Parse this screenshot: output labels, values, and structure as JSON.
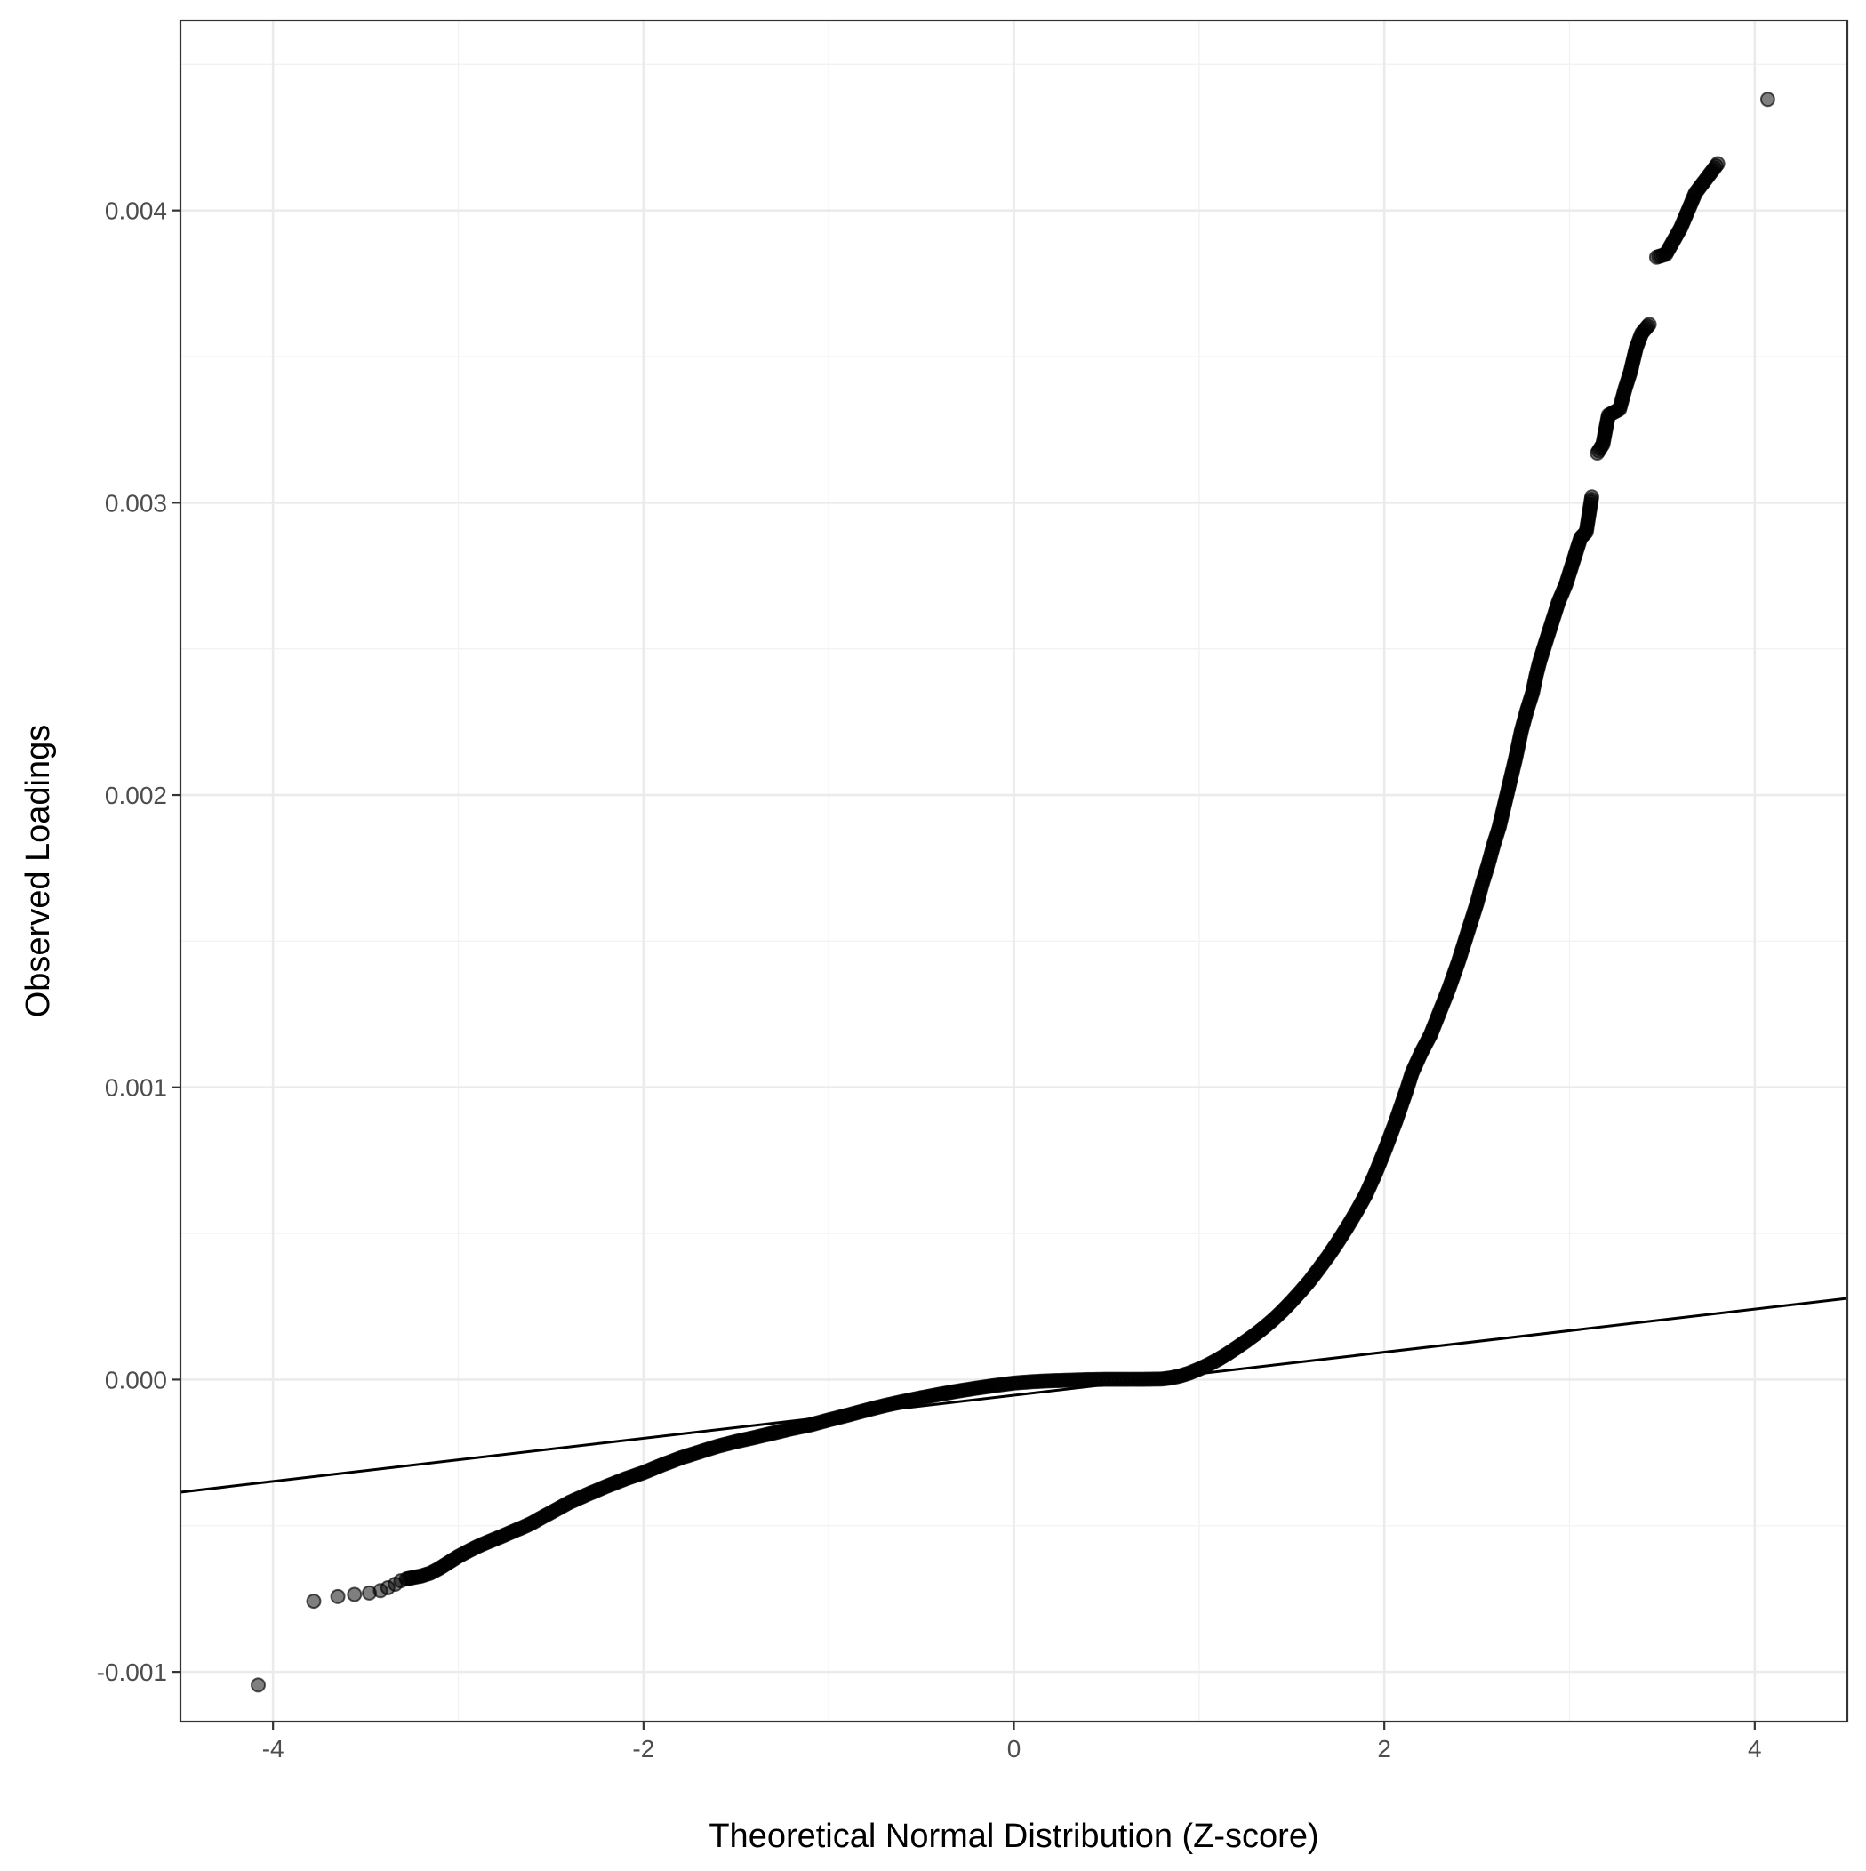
{
  "chart_data": {
    "type": "scatter",
    "title": "",
    "xlabel": "Theoretical Normal Distribution (Z-score)",
    "ylabel": "Observed Loadings",
    "xlim": [
      -4.5,
      4.5
    ],
    "ylim": [
      -0.00117,
      0.00465
    ],
    "x_ticks": [
      -4,
      -2,
      0,
      2,
      4
    ],
    "x_tick_labels": [
      "-4",
      "-2",
      "0",
      "2",
      "4"
    ],
    "y_ticks": [
      -0.001,
      0.0,
      0.001,
      0.002,
      0.003,
      0.004
    ],
    "y_tick_labels": [
      "-0.001",
      "0.000",
      "0.001",
      "0.002",
      "0.003",
      "0.004"
    ],
    "grid": true,
    "legend": "none",
    "reference_line": {
      "x": [
        -4.5,
        4.5
      ],
      "y": [
        -0.000385,
        0.000278
      ]
    },
    "point_color": "#000000",
    "series": [
      {
        "x": [
          -4.08,
          -3.78,
          -3.65,
          -3.56,
          -3.48,
          -3.42,
          -3.38,
          -3.34,
          -3.31,
          -3.28,
          -3.25,
          -3.2,
          -3.15,
          -3.1,
          -3.05,
          -3.0,
          -2.95,
          -2.9,
          -2.85,
          -2.8,
          -2.75,
          -2.7,
          -2.65,
          -2.6,
          -2.55,
          -2.5,
          -2.4,
          -2.3,
          -2.2,
          -2.1,
          -2.0,
          -1.9,
          -1.8,
          -1.7,
          -1.6,
          -1.5,
          -1.4,
          -1.3,
          -1.2,
          -1.1,
          -1.0,
          -0.9,
          -0.8,
          -0.7,
          -0.6,
          -0.5,
          -0.4,
          -0.3,
          -0.2,
          -0.1,
          0.0,
          0.1,
          0.2,
          0.3,
          0.4,
          0.5,
          0.6,
          0.7,
          0.8,
          0.85,
          0.9,
          0.95,
          1.0,
          1.05,
          1.1,
          1.15,
          1.2,
          1.25,
          1.3,
          1.35,
          1.4,
          1.45,
          1.5,
          1.55,
          1.6,
          1.65,
          1.7,
          1.75,
          1.8,
          1.85,
          1.9,
          1.95,
          2.0,
          2.03,
          2.06,
          2.09,
          2.12,
          2.15,
          2.2,
          2.25,
          2.3,
          2.35,
          2.4,
          2.45,
          2.5,
          2.53,
          2.56,
          2.59,
          2.62,
          2.65,
          2.68,
          2.71,
          2.74,
          2.77,
          2.8,
          2.82,
          2.84,
          2.86,
          2.88,
          2.9,
          2.92,
          2.94,
          2.96,
          2.98,
          3.0,
          3.02,
          3.04,
          3.06,
          3.09,
          3.12,
          3.15,
          3.18,
          3.21,
          3.24,
          3.27,
          3.3,
          3.33,
          3.36,
          3.39,
          3.43,
          3.47,
          3.52,
          3.6,
          3.68,
          3.8,
          4.07
        ],
        "y": [
          -0.001045,
          -0.000758,
          -0.000742,
          -0.000735,
          -0.00073,
          -0.000722,
          -0.000712,
          -0.0007,
          -0.000688,
          -0.000682,
          -0.000678,
          -0.000672,
          -0.000662,
          -0.000645,
          -0.000625,
          -0.000605,
          -0.000588,
          -0.000572,
          -0.000558,
          -0.000545,
          -0.000532,
          -0.000518,
          -0.000505,
          -0.00049,
          -0.000472,
          -0.000455,
          -0.00042,
          -0.000392,
          -0.000365,
          -0.00034,
          -0.000318,
          -0.000292,
          -0.000268,
          -0.000248,
          -0.000228,
          -0.000212,
          -0.000198,
          -0.000183,
          -0.000168,
          -0.000155,
          -0.000138,
          -0.000122,
          -0.000105,
          -8.9e-05,
          -7.5e-05,
          -6.2e-05,
          -5e-05,
          -3.9e-05,
          -2.9e-05,
          -2e-05,
          -1.2e-05,
          -7e-06,
          -4e-06,
          -2e-06,
          0.0,
          1e-06,
          1e-06,
          1e-06,
          2e-06,
          6e-06,
          1.3e-05,
          2.3e-05,
          3.6e-05,
          5.1e-05,
          6.8e-05,
          8.7e-05,
          0.000108,
          0.00013,
          0.000153,
          0.000178,
          0.000205,
          0.000235,
          0.000268,
          0.000303,
          0.00034,
          0.000382,
          0.000425,
          0.000472,
          0.000522,
          0.000575,
          0.000632,
          0.000702,
          0.00078,
          0.00083,
          0.00088,
          0.000935,
          0.00099,
          0.00105,
          0.00112,
          0.00118,
          0.00126,
          0.00134,
          0.00143,
          0.00153,
          0.00163,
          0.0017,
          0.00176,
          0.00183,
          0.00189,
          0.00197,
          0.00205,
          0.00213,
          0.00222,
          0.00229,
          0.00235,
          0.00241,
          0.00246,
          0.0025,
          0.00254,
          0.00258,
          0.00262,
          0.00266,
          0.00269,
          0.00272,
          0.00276,
          0.0028,
          0.00284,
          0.00288,
          0.0029,
          0.00302,
          0.00317,
          0.0032,
          0.0033,
          0.00331,
          0.00332,
          0.00339,
          0.00345,
          0.00353,
          0.00358,
          0.00361,
          0.00384,
          0.00385,
          0.00394,
          0.00406,
          0.00416,
          0.00438
        ]
      }
    ]
  }
}
